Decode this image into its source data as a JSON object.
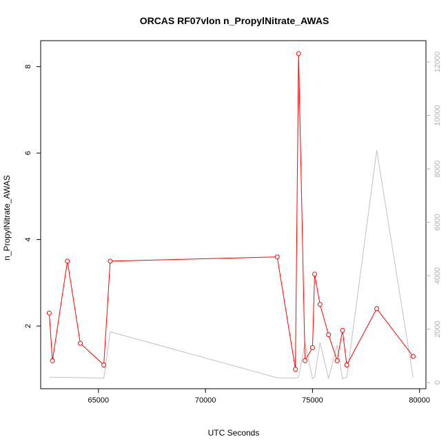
{
  "chart_data": {
    "type": "line",
    "title": "ORCAS RF07vlon n_PropylNitrate_AWAS",
    "xlabel": "UTC Seconds",
    "ylabel": "n_PropylNitrate_AWAS",
    "xlim": [
      62300,
      80300
    ],
    "ylim": [
      0.55,
      8.6
    ],
    "y2lim": [
      -230,
      12800
    ],
    "x_ticks": [
      65000,
      70000,
      75000,
      80000
    ],
    "x_tick_labels": [
      "65000",
      "70000",
      "75000",
      "80000"
    ],
    "y_ticks": [
      2,
      4,
      6,
      8
    ],
    "y_tick_labels": [
      "2",
      "4",
      "6",
      "8"
    ],
    "y2_ticks": [
      0,
      2000,
      4000,
      6000,
      8000,
      10000,
      12000
    ],
    "y2_tick_labels": [
      "0",
      "2000",
      "4000",
      "6000",
      "8000",
      "10000",
      "12000"
    ],
    "grid": false,
    "series": [
      {
        "axis": "left",
        "color": "#ff0000",
        "marker": "open-circle",
        "x": [
          62700,
          62850,
          63550,
          64150,
          65250,
          65550,
          73350,
          74200,
          74350,
          74650,
          75000,
          75100,
          75350,
          75750,
          76150,
          76400,
          76600,
          78000,
          79700
        ],
        "y": [
          2.3,
          1.2,
          3.5,
          1.6,
          1.1,
          3.5,
          3.6,
          1.0,
          8.3,
          1.2,
          1.5,
          3.2,
          2.5,
          1.8,
          1.2,
          1.9,
          1.1,
          2.4,
          1.3
        ]
      },
      {
        "axis": "right",
        "color": "#c0c0c0",
        "marker": "none",
        "x": [
          62700,
          65250,
          65550,
          73350,
          74200,
          74350,
          74650,
          75000,
          75100,
          75350,
          75750,
          76150,
          76400,
          76600,
          78000,
          79700
        ],
        "y": [
          200,
          170,
          1900,
          180,
          170,
          200,
          1500,
          150,
          200,
          1500,
          150,
          1400,
          150,
          200,
          8700,
          200
        ]
      }
    ]
  }
}
